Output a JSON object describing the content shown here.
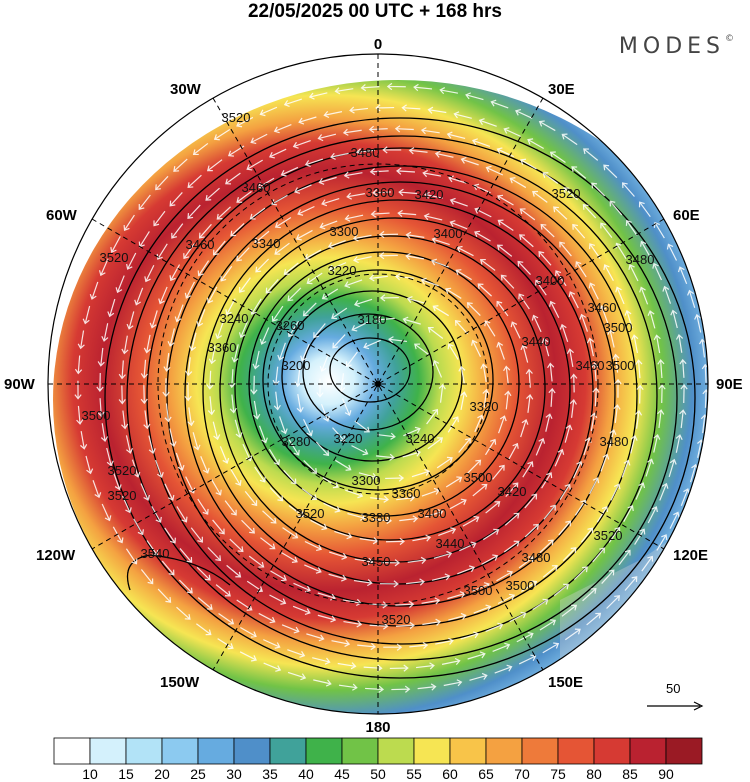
{
  "title": "22/05/2025  00 UTC  + 168 hrs",
  "brand": "MODES",
  "brand_mark": "©",
  "longitude_labels": {
    "n0": "0",
    "e30": "30E",
    "e60": "60E",
    "e90": "90E",
    "e120": "120E",
    "e150": "150E",
    "s180": "180",
    "w150": "150W",
    "w120": "120W",
    "w90": "90W",
    "w60": "60W",
    "w30": "30W"
  },
  "contour_labels": [
    "3520",
    "3480",
    "3460",
    "3420",
    "3460",
    "3300",
    "3220",
    "3180",
    "3260",
    "3240",
    "3200",
    "3340",
    "3360",
    "3360",
    "3400",
    "3440",
    "3460",
    "3480",
    "3500",
    "3520",
    "3500",
    "3520",
    "3540",
    "3520",
    "3500",
    "3520",
    "3280",
    "3320",
    "3220",
    "3240",
    "3300",
    "3360",
    "3380",
    "3400",
    "3420",
    "3440",
    "3450",
    "3480",
    "3500",
    "3520",
    "3400",
    "3460",
    "3500",
    "3480",
    "3520",
    "3500",
    "3520"
  ],
  "vector_reference": {
    "value": "50"
  },
  "colorbar": {
    "colors": [
      "#ffffff",
      "#d4f1fc",
      "#b2e3f7",
      "#8ccaf0",
      "#66abe0",
      "#4f8fc9",
      "#40a29a",
      "#3fb24a",
      "#71c347",
      "#bcdb4f",
      "#f6e553",
      "#f8c449",
      "#f4a141",
      "#ee7a3a",
      "#e55535",
      "#d63a33",
      "#ba2230",
      "#9a1a24"
    ],
    "ticks": [
      "10",
      "15",
      "20",
      "25",
      "30",
      "35",
      "40",
      "45",
      "50",
      "55",
      "60",
      "65",
      "70",
      "75",
      "80",
      "85",
      "90"
    ]
  }
}
